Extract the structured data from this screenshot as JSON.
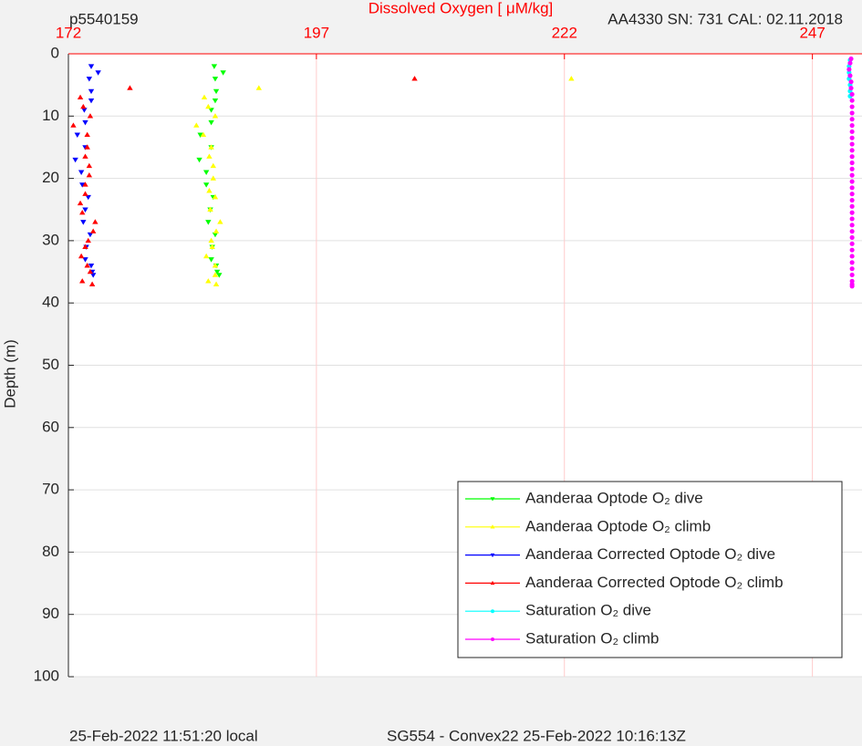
{
  "chart_data": {
    "type": "scatter",
    "title": "Dissolved Oxygen [ μM/kg]",
    "left_label": "p5540159",
    "right_label": "AA4330   SN: 731  CAL: 02.11.2018",
    "footer_left": "25-Feb-2022 11:51:20 local",
    "footer_right": "SG554 - Convex22 25-Feb-2022 10:16:13Z",
    "y_label": "Depth (m)",
    "xlim": [
      172,
      252
    ],
    "xticks": [
      172,
      197,
      222,
      247
    ],
    "ylim": [
      0,
      100
    ],
    "yticks": [
      0,
      10,
      20,
      30,
      40,
      50,
      60,
      70,
      80,
      90,
      100
    ],
    "y_reversed": true,
    "x_axis_position": "top",
    "x_axis_color": "#ff0000",
    "x_grid_color": "#ffcccc",
    "y_grid_color": "#e0e0e0",
    "grid": true,
    "legend_position": "lower right",
    "series": [
      {
        "name": "Aanderaa Optode O₂ dive",
        "color": "#00ff00",
        "marker": "triangle-down",
        "x": [
          186.7,
          187.6,
          186.8,
          186.9,
          186.8,
          186.4,
          186.4,
          185.3,
          186.4,
          185.2,
          185.9,
          185.9,
          186.6,
          186.3,
          186.1,
          186.8,
          186.5,
          186.4,
          187.0,
          186.9,
          187.2
        ],
        "values": [
          2,
          3,
          4,
          6,
          7.5,
          9,
          11,
          13,
          15,
          17,
          19,
          21,
          23,
          25,
          27,
          29,
          31,
          33,
          35,
          34,
          35.5
        ]
      },
      {
        "name": "Aanderaa Optode O₂ climb",
        "color": "#ffff00",
        "marker": "triangle-up",
        "x": [
          222.7,
          191.2,
          185.7,
          186.1,
          186.8,
          184.9,
          185.6,
          186.4,
          186.2,
          186.6,
          186.6,
          186.2,
          186.8,
          186.3,
          187.3,
          186.9,
          186.4,
          186.5,
          185.9,
          186.8,
          186.8,
          186.1,
          186.9
        ],
        "values": [
          4,
          5.5,
          7,
          8.5,
          10,
          11.5,
          13,
          15,
          16.5,
          18,
          20,
          22,
          23,
          25,
          27,
          28.5,
          30,
          31,
          32.5,
          34,
          35.5,
          36.5,
          37
        ]
      },
      {
        "name": "Aanderaa Corrected Optode O₂ dive",
        "color": "#0000ff",
        "marker": "triangle-down",
        "x": [
          174.3,
          175.0,
          174.1,
          174.3,
          174.3,
          173.6,
          173.7,
          172.9,
          173.7,
          172.7,
          173.3,
          173.4,
          174.0,
          173.7,
          173.5,
          174.2,
          173.8,
          173.7,
          174.4,
          174.3,
          174.5
        ],
        "values": [
          2,
          3,
          4,
          6,
          7.5,
          9,
          11,
          13,
          15,
          17,
          19,
          21,
          23,
          25,
          27,
          29,
          31,
          33,
          35,
          34,
          35.5
        ]
      },
      {
        "name": "Aanderaa Corrected Optode O₂ climb",
        "color": "#ff0000",
        "marker": "triangle-up",
        "x": [
          206.9,
          178.2,
          173.2,
          173.5,
          174.2,
          172.5,
          173.9,
          173.9,
          173.7,
          174.1,
          174.1,
          173.7,
          173.7,
          173.2,
          173.4,
          174.7,
          174.5,
          174.0,
          173.7,
          173.3,
          173.9,
          174.2,
          173.4,
          174.4
        ],
        "values": [
          4,
          5.5,
          7,
          8.5,
          10,
          11.5,
          13,
          15,
          16.5,
          18,
          19.5,
          21,
          22.5,
          24,
          25.5,
          27,
          28.5,
          30,
          31,
          32.5,
          34,
          35,
          36.5,
          37
        ]
      },
      {
        "name": "Saturation O₂ dive",
        "color": "#00ffff",
        "marker": "circle",
        "x": [
          250.8,
          250.7,
          250.7,
          250.7,
          250.8,
          250.8,
          250.8
        ],
        "values": [
          1,
          2,
          3,
          4,
          5,
          6,
          6.8
        ]
      },
      {
        "name": "Saturation O₂ climb",
        "color": "#ff00ff",
        "marker": "circle",
        "x": [
          250.9,
          250.8,
          250.7,
          250.8,
          250.9,
          250.9,
          251.0,
          251.0,
          251.0,
          251.0,
          251.0,
          251.0,
          251.0,
          251.0,
          251.0,
          251.0,
          251.0,
          251.0,
          251.0,
          251.0,
          251.0,
          251.0,
          251.0,
          251.0,
          251.0,
          251.0,
          251.0,
          251.0,
          251.0,
          251.0,
          251.0,
          251.0,
          251.0,
          251.0,
          251.0,
          251.0,
          251.0,
          251.0,
          251.0
        ],
        "values": [
          0.8,
          1.5,
          2.5,
          3.5,
          4.5,
          5.5,
          6.5,
          7.5,
          8.5,
          9.5,
          10.5,
          11.5,
          12.5,
          13.5,
          14.5,
          15.5,
          16.5,
          17.5,
          18.5,
          19.5,
          20.5,
          21.5,
          22.5,
          23.5,
          24.5,
          25.5,
          26.5,
          27.5,
          28.5,
          29.5,
          30.5,
          31.5,
          32.5,
          33.5,
          34.5,
          35.5,
          36.5,
          37,
          37.3
        ]
      }
    ]
  }
}
